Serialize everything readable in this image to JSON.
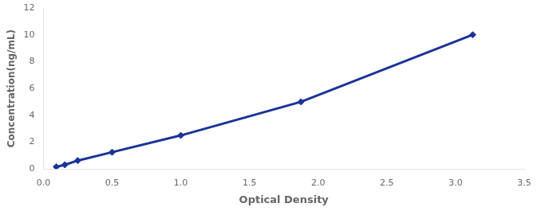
{
  "chart_data": {
    "type": "line",
    "x": [
      0.094,
      0.156,
      0.25,
      0.5,
      1.0,
      1.875,
      3.125
    ],
    "values": [
      0.156,
      0.312,
      0.625,
      1.25,
      2.5,
      5.0,
      10.0
    ],
    "color": "#1a3399",
    "marker": "diamond",
    "xlabel": "Optical Density",
    "ylabel": "Concentration(ng/mL)",
    "xlim": [
      0,
      3.5
    ],
    "ylim": [
      0,
      12
    ],
    "xticks": [
      {
        "value": 0,
        "label": "0.0"
      },
      0.5,
      {
        "value": 1.0,
        "label": "1.0"
      },
      1.5,
      {
        "value": 2.0,
        "label": "2.0"
      },
      2.5,
      {
        "value": 3.0,
        "label": "3.0"
      },
      3.5
    ],
    "yticks": [
      0,
      2,
      4,
      6,
      8,
      10,
      12
    ],
    "grid": false
  }
}
